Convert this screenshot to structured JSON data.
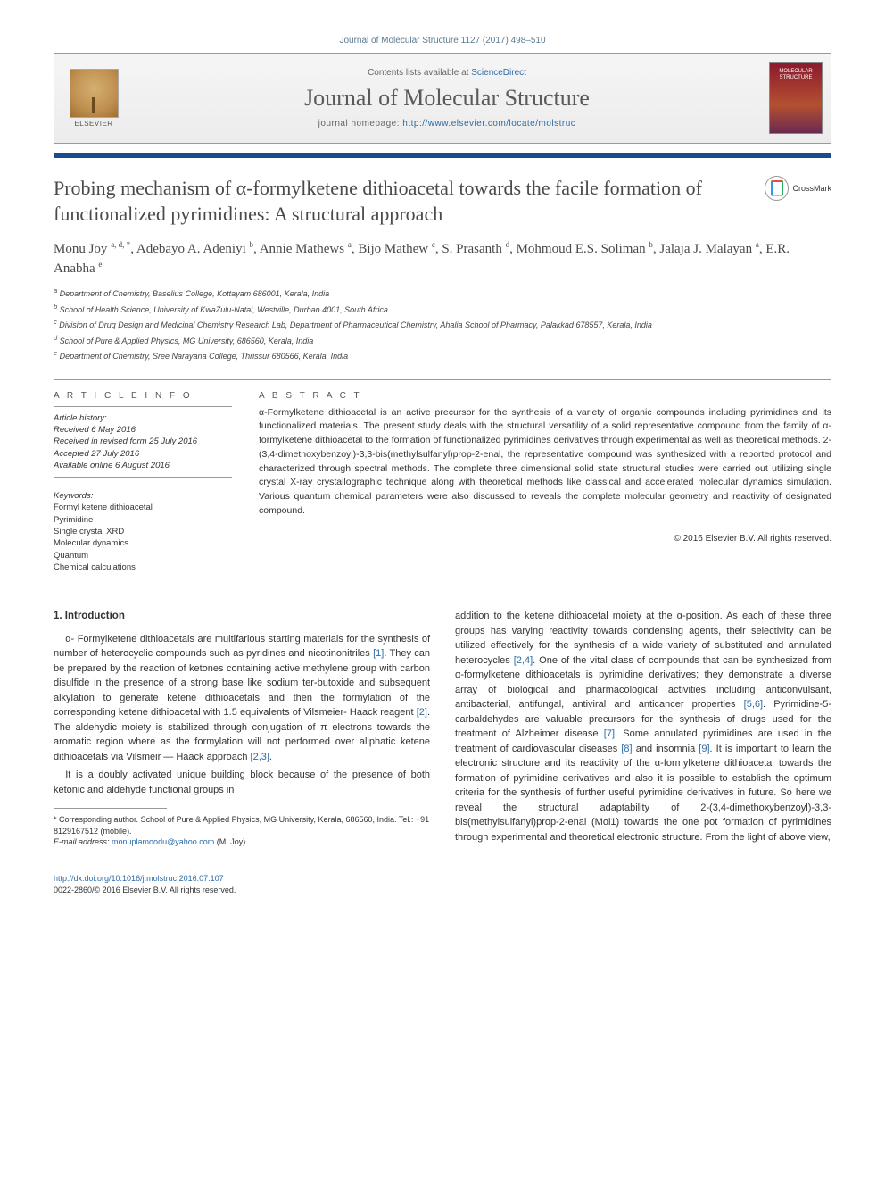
{
  "citation": "Journal of Molecular Structure 1127 (2017) 498–510",
  "header": {
    "contents_prefix": "Contents lists available at ",
    "contents_link": "ScienceDirect",
    "journal_name": "Journal of Molecular Structure",
    "homepage_prefix": "journal homepage: ",
    "homepage_url": "http://www.elsevier.com/locate/molstruc",
    "elsevier_label": "ELSEVIER",
    "cover_label": "MOLECULAR STRUCTURE"
  },
  "crossmark": "CrossMark",
  "title": "Probing mechanism of α-formylketene dithioacetal towards the facile formation of functionalized pyrimidines: A structural approach",
  "authors_html": "Monu Joy <sup>a, d, *</sup>, Adebayo A. Adeniyi <sup>b</sup>, Annie Mathews <sup>a</sup>, Bijo Mathew <sup>c</sup>, S. Prasanth <sup>d</sup>, Mohmoud E.S. Soliman <sup>b</sup>, Jalaja J. Malayan <sup>a</sup>, E.R. Anabha <sup>e</sup>",
  "affiliations": [
    "a Department of Chemistry, Baselius College, Kottayam 686001, Kerala, India",
    "b School of Health Science, University of KwaZulu-Natal, Westville, Durban 4001, South Africa",
    "c Division of Drug Design and Medicinal Chemistry Research Lab, Department of Pharmaceutical Chemistry, Ahalia School of Pharmacy, Palakkad 678557, Kerala, India",
    "d School of Pure & Applied Physics, MG University, 686560, Kerala, India",
    "e Department of Chemistry, Sree Narayana College, Thrissur 680566, Kerala, India"
  ],
  "article_info_heading": "A R T I C L E  I N F O",
  "abstract_heading": "A B S T R A C T",
  "history": {
    "label": "Article history:",
    "received": "Received 6 May 2016",
    "revised": "Received in revised form 25 July 2016",
    "accepted": "Accepted 27 July 2016",
    "online": "Available online 6 August 2016"
  },
  "keywords": {
    "label": "Keywords:",
    "items": [
      "Formyl ketene dithioacetal",
      "Pyrimidine",
      "Single crystal XRD",
      "Molecular dynamics",
      "Quantum",
      "Chemical calculations"
    ]
  },
  "abstract": "α-Formylketene dithioacetal is an active precursor for the synthesis of a variety of organic compounds including pyrimidines and its functionalized materials. The present study deals with the structural versatility of a solid representative compound from the family of α-formylketene dithioacetal to the formation of functionalized pyrimidines derivatives through experimental as well as theoretical methods. 2-(3,4-dimethoxybenzoyl)-3,3-bis(methylsulfanyl)prop-2-enal, the representative compound was synthesized with a reported protocol and characterized through spectral methods. The complete three dimensional solid state structural studies were carried out utilizing single crystal X-ray crystallographic technique along with theoretical methods like classical and accelerated molecular dynamics simulation. Various quantum chemical parameters were also discussed to reveals the complete molecular geometry and reactivity of designated compound.",
  "copyright": "© 2016 Elsevier B.V. All rights reserved.",
  "section1_heading": "1. Introduction",
  "para1": "α- Formylketene dithioacetals are multifarious starting materials for the synthesis of number of heterocyclic compounds such as pyridines and nicotinonitriles [1]. They can be prepared by the reaction of ketones containing active methylene group with carbon disulfide in the presence of a strong base like sodium ter-butoxide and subsequent alkylation to generate ketene dithioacetals and then the formylation of the corresponding ketene dithioacetal with 1.5 equivalents of Vilsmeier- Haack reagent [2]. The aldehydic moiety is stabilized through conjugation of π electrons towards the aromatic region where as the formylation will not performed over aliphatic ketene dithioacetals via Vilsmeir — Haack approach [2,3].",
  "para2": "It is a doubly activated unique building block because of the presence of both ketonic and aldehyde functional groups in",
  "para3": "addition to the ketene dithioacetal moiety at the α-position. As each of these three groups has varying reactivity towards condensing agents, their selectivity can be utilized effectively for the synthesis of a wide variety of substituted and annulated heterocycles [2,4]. One of the vital class of compounds that can be synthesized from α-formylketene dithioacetals is pyrimidine derivatives; they demonstrate a diverse array of biological and pharmacological activities including anticonvulsant, antibacterial, antifungal, antiviral and anticancer properties [5,6]. Pyrimidine-5-carbaldehydes are valuable precursors for the synthesis of drugs used for the treatment of Alzheimer disease [7]. Some annulated pyrimidines are used in the treatment of cardiovascular diseases [8] and insomnia [9]. It is important to learn the electronic structure and its reactivity of the α-formylketene dithioacetal towards the formation of pyrimidine derivatives and also it is possible to establish the optimum criteria for the synthesis of further useful pyrimidine derivatives in future. So here we reveal the structural adaptability of 2-(3,4-dimethoxybenzoyl)-3,3-bis(methylsulfanyl)prop-2-enal (Mol1) towards the one pot formation of pyrimidines through experimental and theoretical electronic structure. From the light of above view,",
  "footnote_corresponding": "* Corresponding author. School of Pure & Applied Physics, MG University, Kerala, 686560, India. Tel.: +91 8129167512 (mobile).",
  "footnote_email_label": "E-mail address: ",
  "footnote_email": "monuplamoodu@yahoo.com",
  "footnote_email_suffix": " (M. Joy).",
  "footer": {
    "doi": "http://dx.doi.org/10.1016/j.molstruc.2016.07.107",
    "issn_line": "0022-2860/© 2016 Elsevier B.V. All rights reserved."
  },
  "colors": {
    "link": "#2a6ba8",
    "rule_blue": "#1a4b8c",
    "text": "#333333",
    "title_gray": "#49494a"
  },
  "typography": {
    "body_pt": 11,
    "title_pt": 22,
    "journal_pt": 26,
    "small_pt": 9
  }
}
